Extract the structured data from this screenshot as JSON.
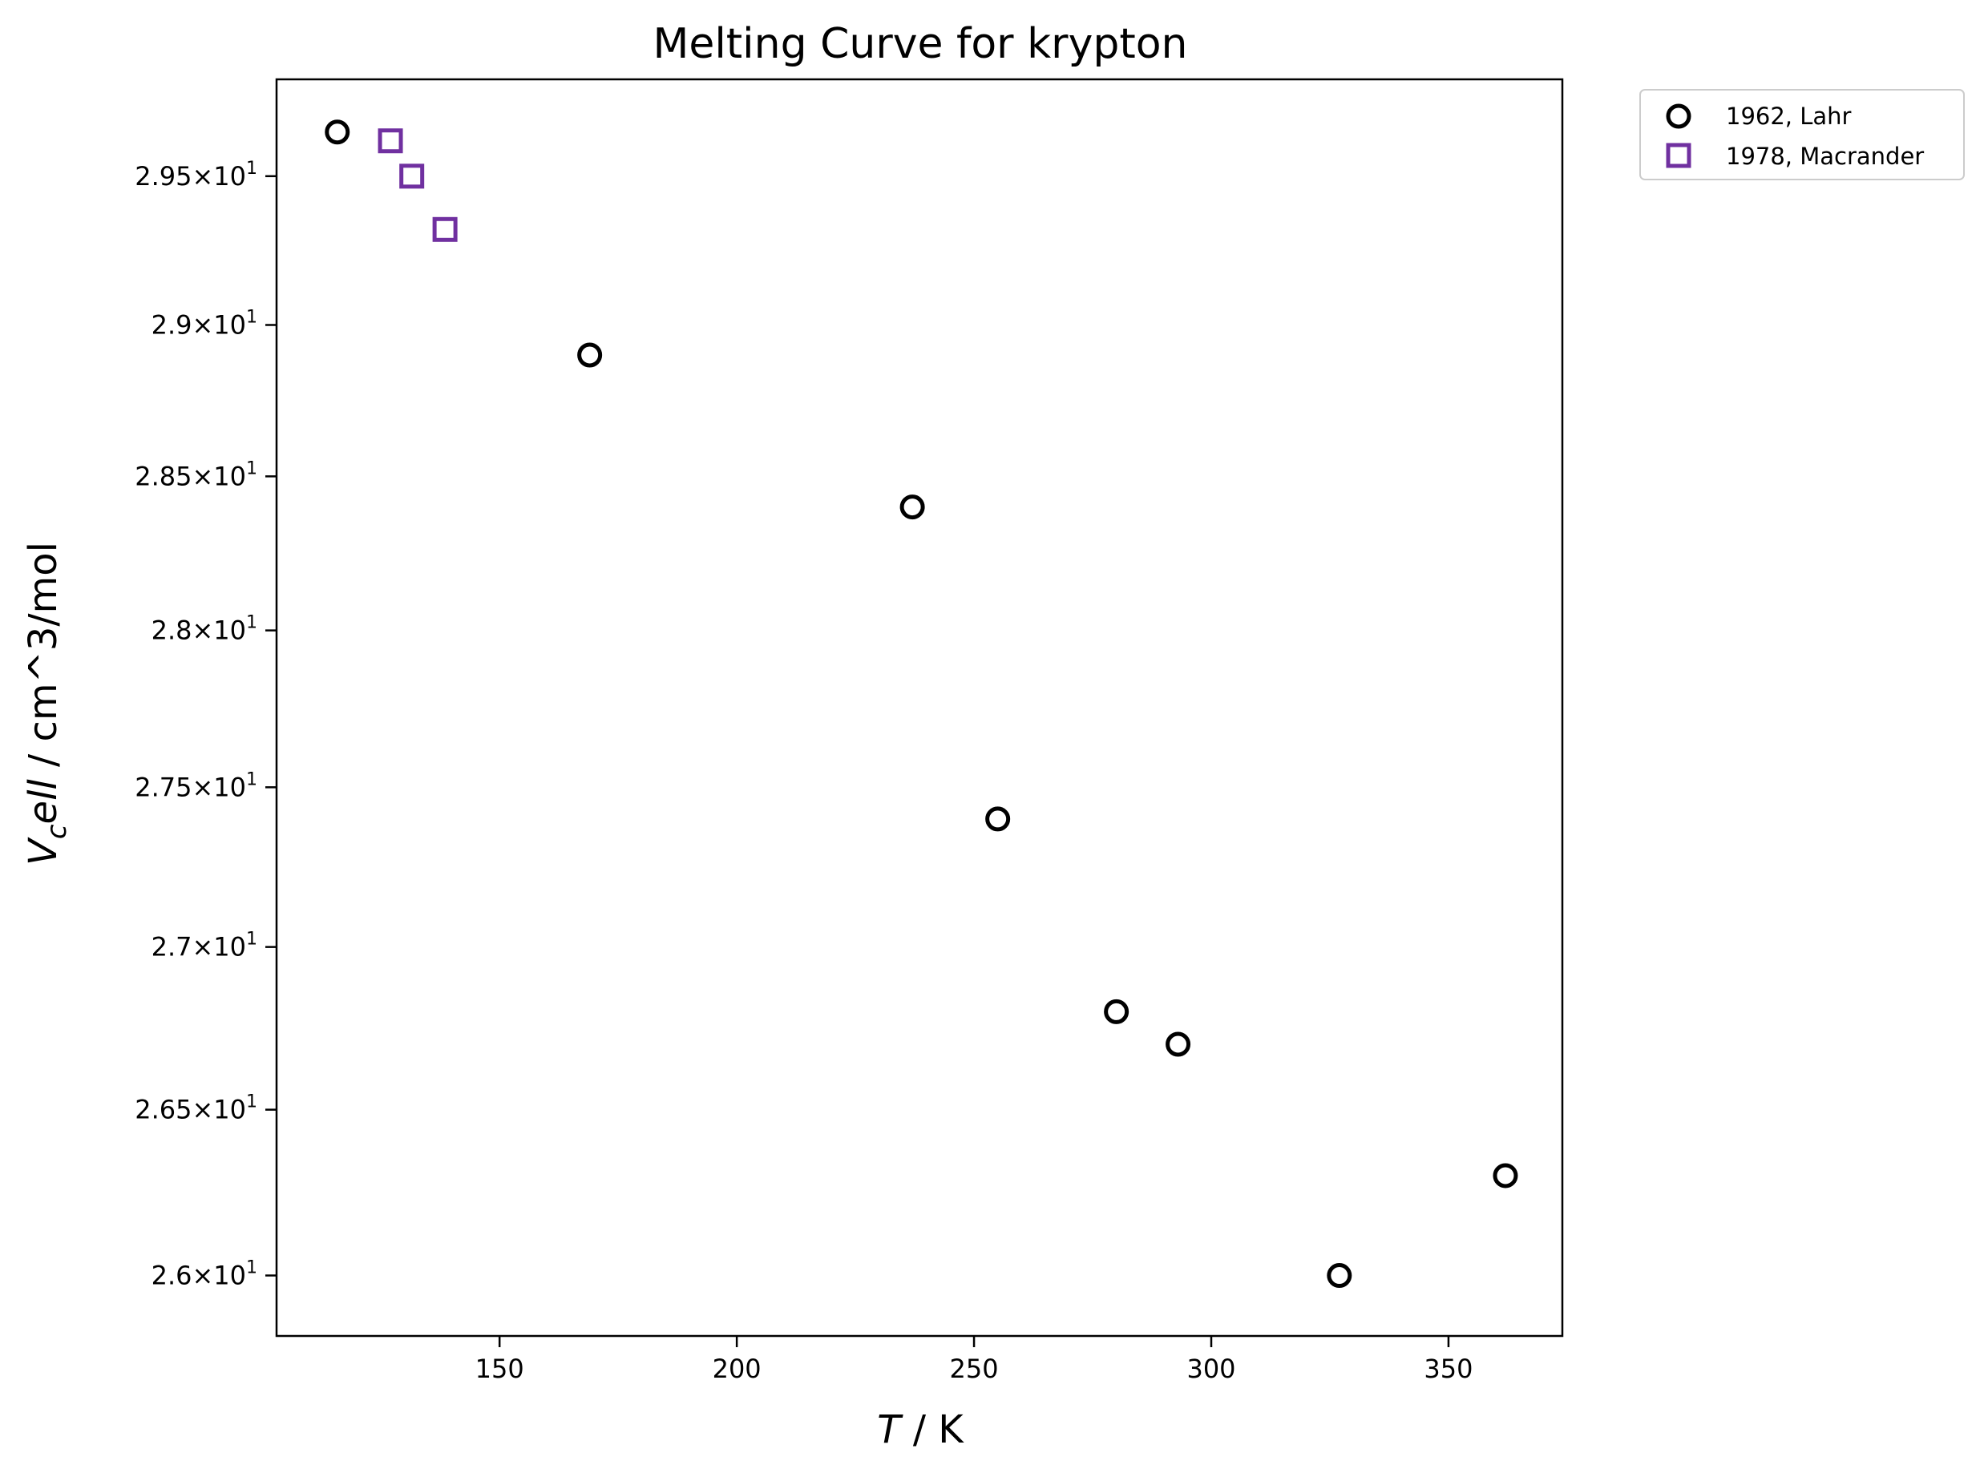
{
  "chart_data": {
    "type": "scatter",
    "title": "Melting Curve for krypton",
    "xlabel": {
      "italic": "T",
      "rest": " / K"
    },
    "ylabel": {
      "main": "V",
      "sub": "c",
      "mid": "ell",
      "rest": " / cm^3/mol"
    },
    "xlim": [
      103,
      374
    ],
    "ylim": [
      25.82,
      29.83
    ],
    "y_scale": "log",
    "grid": false,
    "legend_placement": "outside-top-right",
    "x_ticks": [
      {
        "value": 150,
        "label": "150"
      },
      {
        "value": 200,
        "label": "200"
      },
      {
        "value": 250,
        "label": "250"
      },
      {
        "value": 300,
        "label": "300"
      },
      {
        "value": 350,
        "label": "350"
      }
    ],
    "y_ticks": [
      {
        "value": 26.0,
        "mantissa": "2.6",
        "base": "10",
        "exp": "1"
      },
      {
        "value": 26.5,
        "mantissa": "2.65",
        "base": "10",
        "exp": "1"
      },
      {
        "value": 27.0,
        "mantissa": "2.7",
        "base": "10",
        "exp": "1"
      },
      {
        "value": 27.5,
        "mantissa": "2.75",
        "base": "10",
        "exp": "1"
      },
      {
        "value": 28.0,
        "mantissa": "2.8",
        "base": "10",
        "exp": "1"
      },
      {
        "value": 28.5,
        "mantissa": "2.85",
        "base": "10",
        "exp": "1"
      },
      {
        "value": 29.0,
        "mantissa": "2.9",
        "base": "10",
        "exp": "1"
      },
      {
        "value": 29.5,
        "mantissa": "2.95",
        "base": "10",
        "exp": "1"
      }
    ],
    "series": [
      {
        "name": "1962, Lahr",
        "marker": "circle",
        "color": "#000000",
        "points": [
          {
            "x": 115.8,
            "y": 29.65
          },
          {
            "x": 169.0,
            "y": 28.9
          },
          {
            "x": 237.0,
            "y": 28.4
          },
          {
            "x": 255.0,
            "y": 27.4
          },
          {
            "x": 280.0,
            "y": 26.8
          },
          {
            "x": 293.0,
            "y": 26.7
          },
          {
            "x": 327.0,
            "y": 26.0
          },
          {
            "x": 362.0,
            "y": 26.3
          }
        ]
      },
      {
        "name": "1978, Macrander",
        "marker": "square",
        "color": "#7030a0",
        "points": [
          {
            "x": 127.0,
            "y": 29.62
          },
          {
            "x": 131.5,
            "y": 29.5
          },
          {
            "x": 138.5,
            "y": 29.32
          }
        ]
      }
    ]
  }
}
